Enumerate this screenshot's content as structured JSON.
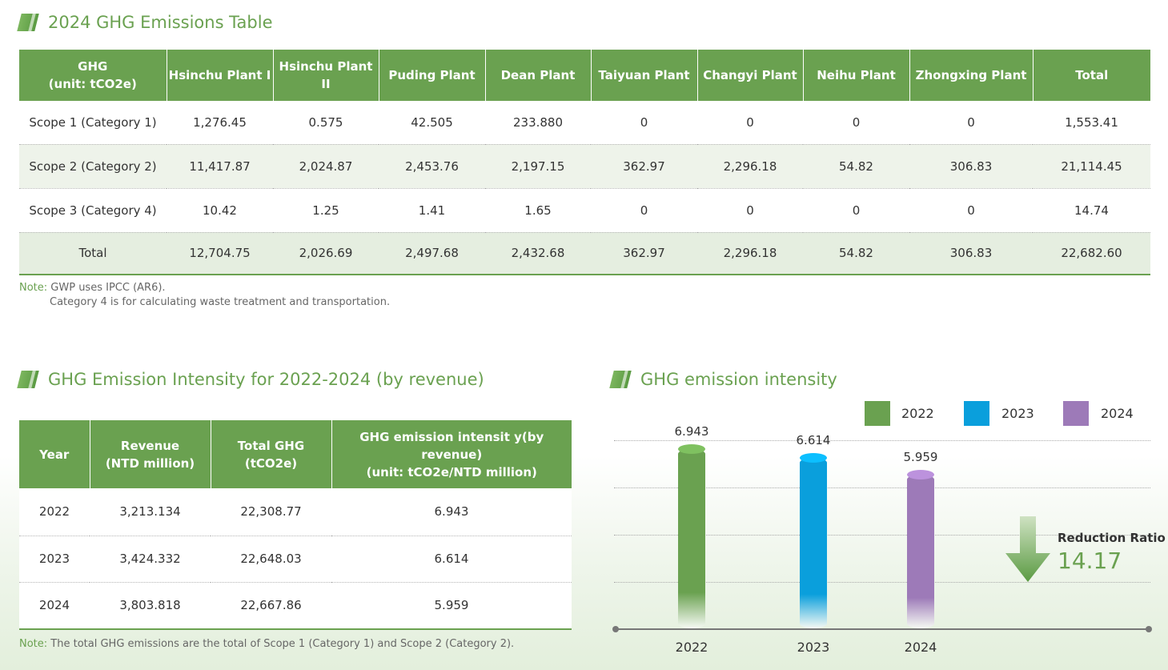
{
  "emissions": {
    "title": "2024 GHG Emissions Table",
    "header_ghg": "GHG",
    "header_unit": "(unit: tCO2e)",
    "columns": [
      "Hsinchu Plant I",
      "Hsinchu Plant II",
      "Puding Plant",
      "Dean Plant",
      "Taiyuan Plant",
      "Changyi Plant",
      "Neihu Plant",
      "Zhongxing Plant",
      "Total"
    ],
    "rows": [
      {
        "label": "Scope 1 (Category 1)",
        "values": [
          "1,276.45",
          "0.575",
          "42.505",
          "233.880",
          "0",
          "0",
          "0",
          "0",
          "1,553.41"
        ]
      },
      {
        "label": "Scope 2 (Category 2)",
        "values": [
          "11,417.87",
          "2,024.87",
          "2,453.76",
          "2,197.15",
          "362.97",
          "2,296.18",
          "54.82",
          "306.83",
          "21,114.45"
        ]
      },
      {
        "label": "Scope 3 (Category 4)",
        "values": [
          "10.42",
          "1.25",
          "1.41",
          "1.65",
          "0",
          "0",
          "0",
          "0",
          "14.74"
        ]
      },
      {
        "label": "Total",
        "values": [
          "12,704.75",
          "2,026.69",
          "2,497.68",
          "2,432.68",
          "362.97",
          "2,296.18",
          "54.82",
          "306.83",
          "22,682.60"
        ]
      }
    ],
    "note_label": "Note:",
    "note_line1": "GWP uses IPCC (AR6).",
    "note_line2": "Category 4 is for calculating waste treatment and transportation."
  },
  "intensity_table": {
    "title": "GHG Emission Intensity for 2022-2024 (by revenue)",
    "h_year": "Year",
    "h_revenue_1": "Revenue",
    "h_revenue_2": "(NTD million)",
    "h_total_1": "Total GHG",
    "h_total_2": "(tCO2e)",
    "h_intensity_1": "GHG emission intensit y(by revenue)",
    "h_intensity_2": "(unit: tCO2e/NTD million)",
    "rows": [
      {
        "year": "2022",
        "revenue": "3,213.134",
        "total": "22,308.77",
        "intensity": "6.943"
      },
      {
        "year": "2023",
        "revenue": "3,424.332",
        "total": "22,648.03",
        "intensity": "6.614"
      },
      {
        "year": "2024",
        "revenue": "3,803.818",
        "total": "22,667.86",
        "intensity": "5.959"
      }
    ],
    "note_label": "Note:",
    "note_text": "The total GHG emissions are the total of Scope 1 (Category 1) and Scope 2 (Category 2)."
  },
  "chart_title": "GHG emission intensity",
  "reduction_label": "Reduction Ratio",
  "reduction_value": "14.17",
  "chart_data": {
    "type": "bar",
    "title": "GHG emission intensity",
    "categories": [
      "2022",
      "2023",
      "2024"
    ],
    "values": [
      6.943,
      6.614,
      5.959
    ],
    "value_labels": [
      "6.943",
      "6.614",
      "5.959"
    ],
    "colors": [
      "#6aa150",
      "#0a9fdc",
      "#9d7ab8"
    ],
    "legend": [
      "2022",
      "2023",
      "2024"
    ],
    "legend_position": "top-right",
    "ylim": [
      0,
      7.6
    ],
    "grid": true
  }
}
